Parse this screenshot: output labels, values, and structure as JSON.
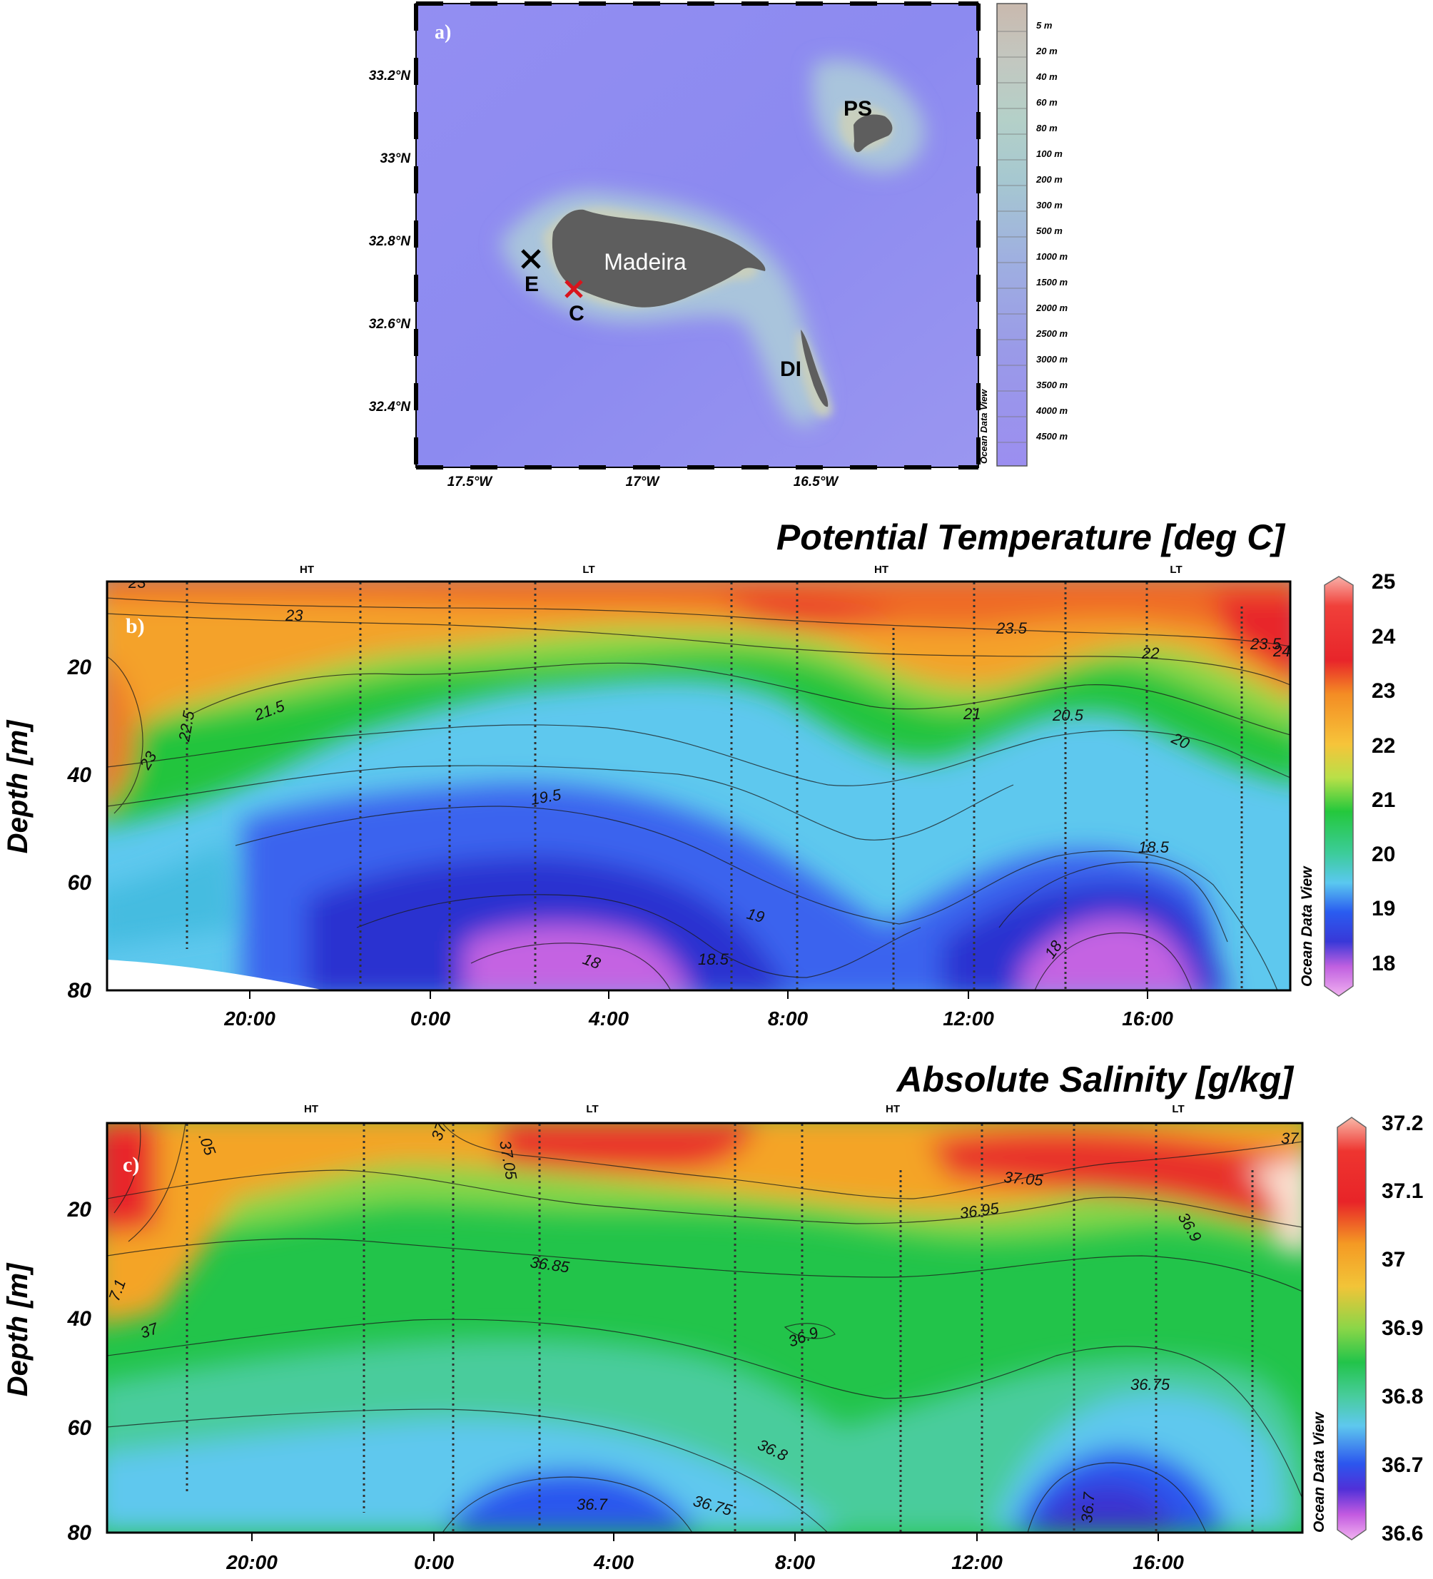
{
  "map": {
    "panel_label": "a)",
    "lat_ticks": [
      "33.2°N",
      "33°N",
      "32.8°N",
      "32.6°N",
      "32.4°N"
    ],
    "lon_ticks": [
      "17.5°W",
      "17°W",
      "16.5°W"
    ],
    "depth_legend": [
      "5 m",
      "20 m",
      "40 m",
      "60 m",
      "80 m",
      "100 m",
      "200 m",
      "300 m",
      "500 m",
      "1000 m",
      "1500 m",
      "2000 m",
      "2500 m",
      "3000 m",
      "3500 m",
      "4000 m",
      "4500 m"
    ],
    "watermark": "Ocean Data View",
    "labels": {
      "madeira": "Madeira",
      "ps": "PS",
      "di": "DI",
      "e": "E",
      "c": "C"
    },
    "colors": {
      "ocean": "#8f8af0",
      "land": "#5e5e5e",
      "marker_e": "#000000",
      "marker_c": "#d9141c"
    }
  },
  "temperature": {
    "panel_label": "b)",
    "title": "Potential Temperature [deg C]",
    "ylabel": "Depth [m]",
    "watermark": "Ocean Data View",
    "tide_labels": [
      "HT",
      "LT",
      "HT",
      "LT"
    ],
    "xticks": [
      "20:00",
      "0:00",
      "4:00",
      "8:00",
      "12:00",
      "16:00"
    ],
    "yticks": [
      "20",
      "40",
      "60",
      "80"
    ],
    "colorbar_ticks": [
      "25",
      "24",
      "23",
      "22",
      "21",
      "20",
      "19",
      "18"
    ],
    "contour_labels": [
      "23",
      "23.5",
      "22",
      "23.5",
      "22.5",
      "21.5",
      "23",
      "21",
      "20.5",
      "20",
      "19.5",
      "18.5",
      "19",
      "18",
      "18.5",
      "18",
      "23.5",
      "24"
    ]
  },
  "salinity": {
    "panel_label": "c)",
    "title": "Absolute Salinity [g/kg]",
    "ylabel": "Depth [m]",
    "watermark": "Ocean Data View",
    "tide_labels": [
      "HT",
      "LT",
      "HT",
      "LT"
    ],
    "xticks": [
      "20:00",
      "0:00",
      "4:00",
      "8:00",
      "12:00",
      "16:00"
    ],
    "yticks": [
      "20",
      "40",
      "60",
      "80"
    ],
    "colorbar_ticks": [
      "37.2",
      "37.1",
      "37",
      "36.9",
      "36.8",
      "36.7",
      "36.6"
    ],
    "contour_labels": [
      ".05",
      "37",
      "37.05",
      "37",
      "37.05",
      "36.95",
      "36.9",
      "36.85",
      "37",
      "36.9",
      "36.75",
      "36.8",
      "36.7",
      "36.75",
      "36.7",
      "7.1"
    ]
  },
  "chart_data": [
    {
      "type": "heatmap",
      "title": "Potential Temperature [deg C]",
      "ylabel": "Depth [m]",
      "x_ticks": [
        "20:00",
        "0:00",
        "4:00",
        "8:00",
        "12:00",
        "16:00"
      ],
      "y_ticks": [
        20,
        40,
        60,
        80
      ],
      "ylim": [
        80,
        0
      ],
      "colorbar_range": [
        17.5,
        25
      ],
      "colorbar_ticks": [
        25,
        24,
        23,
        22,
        21,
        20,
        19,
        18
      ],
      "contour_levels": [
        18,
        18.5,
        19,
        19.5,
        20,
        20.5,
        21,
        21.5,
        22,
        22.5,
        23,
        23.5,
        24
      ],
      "tide_markers": [
        "HT",
        "LT",
        "HT",
        "LT"
      ]
    },
    {
      "type": "heatmap",
      "title": "Absolute Salinity [g/kg]",
      "ylabel": "Depth [m]",
      "x_ticks": [
        "20:00",
        "0:00",
        "4:00",
        "8:00",
        "12:00",
        "16:00"
      ],
      "y_ticks": [
        20,
        40,
        60,
        80
      ],
      "ylim": [
        80,
        0
      ],
      "colorbar_range": [
        36.6,
        37.2
      ],
      "colorbar_ticks": [
        37.2,
        37.1,
        37,
        36.9,
        36.8,
        36.7,
        36.6
      ],
      "contour_levels": [
        36.7,
        36.75,
        36.8,
        36.85,
        36.9,
        36.95,
        37,
        37.05,
        37.1
      ],
      "tide_markers": [
        "HT",
        "LT",
        "HT",
        "LT"
      ]
    }
  ]
}
